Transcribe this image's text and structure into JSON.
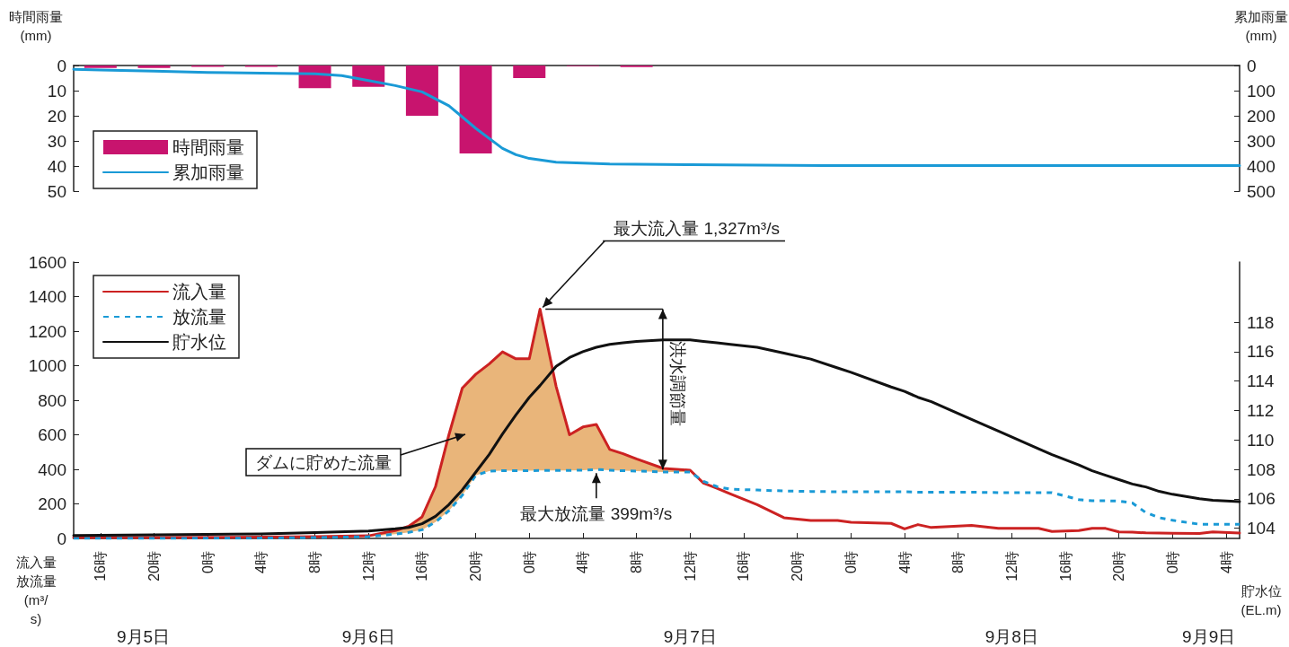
{
  "chart_data": [
    {
      "type": "bar",
      "ylabel": "時間雨量(mm)",
      "y2label": "累加雨量(mm)",
      "xlim": [
        "--09-05T14:00",
        "--09-09T05:00"
      ],
      "ylim": [
        50,
        0
      ],
      "yticks": [
        0,
        10,
        20,
        30,
        40,
        50
      ],
      "y2lim": [
        500,
        0
      ],
      "y2ticks": [
        0,
        100,
        200,
        300,
        400,
        500
      ],
      "tick_labels": "y",
      "legend": "bottom left",
      "series": [
        {
          "name": "時間雨量",
          "color": "#c8146e",
          "x": [
            "--09-05T16:00",
            "--09-05T20:00",
            "--09-06T00:00",
            "--09-06T04:00",
            "--09-06T08:00",
            "--09-06T12:00",
            "--09-06T16:00",
            "--09-06T20:00",
            "--09-07T00:00",
            "--09-07T04:00",
            "--09-07T08:00"
          ],
          "values": [
            1,
            1,
            0.5,
            0.5,
            9,
            8.5,
            20,
            35,
            5,
            0.3,
            0.6
          ]
        },
        {
          "name": "累加雨量",
          "type": "line",
          "axis": "y2",
          "color": "#1a9ad6",
          "x": [
            "--09-05T14:00",
            "--09-05T16:00",
            "--09-05T20:00",
            "--09-06T00:00",
            "--09-06T04:00",
            "--09-06T08:00",
            "--09-06T10:00",
            "--09-06T12:00",
            "--09-06T14:00",
            "--09-06T16:00",
            "--09-06T18:00",
            "--09-06T20:00",
            "--09-06T22:00",
            "--09-06T23:00",
            "--09-07T00:00",
            "--09-07T02:00",
            "--09-07T06:00",
            "--09-07T12:00",
            "--09-07T22:00",
            "--09-08T08:00",
            "--09-08T18:00",
            "--09-09T05:00"
          ],
          "values": [
            15,
            18,
            22,
            28,
            30,
            33,
            40,
            60,
            80,
            105,
            160,
            250,
            330,
            355,
            370,
            385,
            392,
            395,
            398,
            398,
            398,
            398
          ]
        }
      ]
    },
    {
      "type": "line",
      "ylabel": "流入量放流量(m³/s)",
      "y2label": "貯水位(EL.m)",
      "xlim": [
        "--09-05T14:00",
        "--09-09T05:00"
      ],
      "xticks": [
        {
          "value": "--09-05T16:00",
          "label": "16時"
        },
        {
          "value": "--09-05T20:00",
          "label": "20時"
        },
        {
          "value": "--09-06T00:00",
          "label": "0時"
        },
        {
          "value": "--09-06T04:00",
          "label": "4時"
        },
        {
          "value": "--09-06T08:00",
          "label": "8時"
        },
        {
          "value": "--09-06T12:00",
          "label": "12時"
        },
        {
          "value": "--09-06T16:00",
          "label": "16時"
        },
        {
          "value": "--09-06T20:00",
          "label": "20時"
        },
        {
          "value": "--09-07T00:00",
          "label": "0時"
        },
        {
          "value": "--09-07T04:00",
          "label": "4時"
        },
        {
          "value": "--09-07T08:00",
          "label": "8時"
        },
        {
          "value": "--09-07T12:00",
          "label": "12時"
        },
        {
          "value": "--09-07T16:00",
          "label": "16時"
        },
        {
          "value": "--09-07T20:00",
          "label": "20時"
        },
        {
          "value": "--09-08T00:00",
          "label": "0時"
        },
        {
          "value": "--09-08T04:00",
          "label": "4時"
        },
        {
          "value": "--09-08T08:00",
          "label": "8時"
        },
        {
          "value": "--09-08T12:00",
          "label": "12時"
        },
        {
          "value": "--09-08T16:00",
          "label": "16時"
        },
        {
          "value": "--09-08T20:00",
          "label": "20時"
        },
        {
          "value": "--09-09T00:00",
          "label": "0時"
        },
        {
          "value": "--09-09T04:00",
          "label": "4時"
        }
      ],
      "x2lim": [
        "--09-05T14:00",
        "--09-09T05:00"
      ],
      "x2ticks": [
        {
          "value": "--09-05T19:12",
          "label": "9月5日"
        },
        {
          "value": "--09-06T12:00",
          "label": "9月6日"
        },
        {
          "value": "--09-07T12:00",
          "label": "9月7日"
        },
        {
          "value": "--09-08T12:00",
          "label": "9月8日"
        },
        {
          "value": "--09-09T02:42",
          "label": "9月9日"
        }
      ],
      "ylim": [
        0,
        1600
      ],
      "yticks": [
        0,
        200,
        400,
        600,
        800,
        1000,
        1200,
        1400,
        1600
      ],
      "y2lim": [
        103.3,
        122.1
      ],
      "y2ticks": [
        104,
        106,
        108,
        110,
        112,
        114,
        116,
        118
      ],
      "legend": "top left",
      "annotations": [
        {
          "text": "最大流入量 1,327m³/s",
          "x": "--09-07T00:48",
          "y": 1327
        },
        {
          "text": "最大放流量 399m³/s",
          "x": "--09-07T05:00",
          "y": 399
        },
        "ダムに貯めた流量",
        "洪水調節量"
      ],
      "x": [
        "--09-05T14:00",
        "--09-05T20:00",
        "--09-06T04:00",
        "--09-06T08:00",
        "--09-06T12:00",
        "--09-06T14:00",
        "--09-06T15:00",
        "--09-06T16:00",
        "--09-06T17:00",
        "--09-06T18:00",
        "--09-06T19:00",
        "--09-06T20:00",
        "--09-06T21:00",
        "--09-06T22:00",
        "--09-06T23:00",
        "--09-07T00:00",
        "--09-07T00:48",
        "--09-07T02:00",
        "--09-07T03:00",
        "--09-07T04:00",
        "--09-07T05:00",
        "--09-07T06:00",
        "--09-07T07:00",
        "--09-07T08:00",
        "--09-07T10:00",
        "--09-07T12:00",
        "--09-07T13:00",
        "--09-07T14:00",
        "--09-07T15:00",
        "--09-07T17:00",
        "--09-07T19:00",
        "--09-07T21:00",
        "--09-07T23:00",
        "--09-08T00:00",
        "--09-08T03:00",
        "--09-08T04:00",
        "--09-08T05:00",
        "--09-08T06:00",
        "--09-08T09:00",
        "--09-08T11:00",
        "--09-08T14:00",
        "--09-08T15:00",
        "--09-08T17:00",
        "--09-08T18:00",
        "--09-08T19:00",
        "--09-08T20:00",
        "--09-08T21:00",
        "--09-08T22:00",
        "--09-08T23:00",
        "--09-09T00:00",
        "--09-09T02:00",
        "--09-09T03:00",
        "--09-09T05:00"
      ],
      "series": [
        {
          "name": "流入量",
          "color": "#cc2222",
          "values": [
            5,
            5,
            8,
            10,
            15,
            45,
            70,
            125,
            300,
            600,
            870,
            950,
            1010,
            1080,
            1040,
            1040,
            1327,
            880,
            600,
            645,
            660,
            515,
            490,
            460,
            405,
            395,
            320,
            290,
            258,
            195,
            120,
            104,
            104,
            94,
            87,
            55,
            80,
            63,
            75,
            58,
            58,
            40,
            45,
            58,
            58,
            38,
            36,
            32,
            31,
            30,
            28,
            38,
            31
          ],
          "lower": [
            null,
            null,
            null,
            null,
            10,
            25,
            35,
            50,
            95,
            160,
            250,
            365,
            390,
            392,
            392,
            392,
            393,
            393,
            394,
            395,
            399,
            395,
            392,
            390,
            385,
            385,
            null,
            null,
            null,
            null,
            null,
            null,
            null,
            null,
            null,
            null,
            null,
            null,
            null,
            null,
            null,
            null,
            null,
            null,
            null,
            null,
            null,
            null,
            null,
            null,
            null,
            null,
            null
          ],
          "upper": [
            null,
            null,
            null,
            null,
            15,
            45,
            70,
            125,
            300,
            600,
            870,
            950,
            1010,
            1080,
            1040,
            1040,
            1327,
            880,
            600,
            645,
            660,
            515,
            490,
            460,
            405,
            395,
            null,
            null,
            null,
            null,
            null,
            null,
            null,
            null,
            null,
            null,
            null,
            null,
            null,
            null,
            null,
            null,
            null,
            null,
            null,
            null,
            null,
            null,
            null,
            null,
            null,
            null,
            null
          ]
        },
        {
          "name": "放流量",
          "color": "#1a9ad6",
          "line_style": "dashed",
          "values": [
            0,
            0,
            2,
            5,
            10,
            25,
            35,
            50,
            95,
            160,
            250,
            365,
            390,
            392,
            392,
            392,
            393,
            393,
            394,
            395,
            399,
            395,
            392,
            390,
            385,
            385,
            330,
            300,
            285,
            280,
            275,
            272,
            270,
            270,
            270,
            270,
            268,
            268,
            268,
            265,
            265,
            265,
            225,
            218,
            218,
            216,
            205,
            150,
            120,
            105,
            82,
            82,
            82
          ]
        },
        {
          "name": "貯水位",
          "color": "#111111",
          "axis": "y2",
          "values": [
            103.5,
            103.55,
            103.6,
            103.7,
            103.8,
            103.95,
            104.05,
            104.3,
            104.8,
            105.6,
            106.6,
            107.8,
            109.0,
            110.4,
            111.7,
            112.9,
            113.7,
            115.0,
            115.6,
            116.0,
            116.3,
            116.5,
            116.6,
            116.7,
            116.8,
            116.8,
            116.7,
            116.6,
            116.5,
            116.3,
            115.9,
            115.5,
            114.9,
            114.6,
            113.6,
            113.3,
            112.9,
            112.6,
            111.4,
            110.6,
            109.4,
            109.0,
            108.3,
            107.9,
            107.6,
            107.3,
            107.0,
            106.8,
            106.5,
            106.3,
            106.0,
            105.9,
            105.8
          ]
        }
      ]
    }
  ]
}
